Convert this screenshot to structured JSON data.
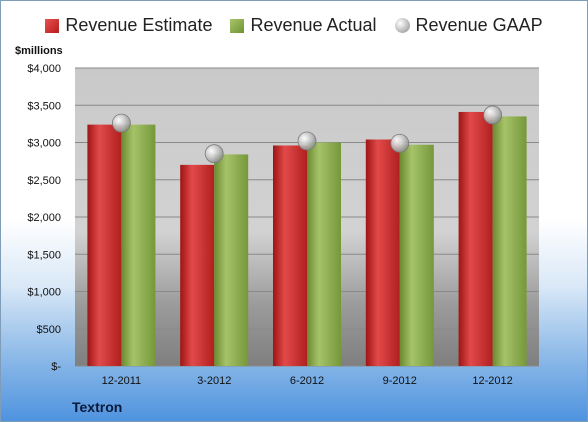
{
  "legend": {
    "estimate": "Revenue Estimate",
    "actual": "Revenue Actual",
    "gaap": "Revenue GAAP"
  },
  "unit_label": "$millions",
  "company": "Textron",
  "colors": {
    "estimate": "#c8282a",
    "actual": "#8cab4c",
    "gaap": "#b9b9b9"
  },
  "chart_data": {
    "type": "bar",
    "categories": [
      "12-2011",
      "3-2012",
      "6-2012",
      "9-2012",
      "12-2012"
    ],
    "series": [
      {
        "name": "Revenue Estimate",
        "values": [
          3240,
          2700,
          2960,
          3040,
          3410
        ]
      },
      {
        "name": "Revenue Actual",
        "values": [
          3240,
          2840,
          3000,
          2970,
          3350
        ]
      },
      {
        "name": "Revenue GAAP",
        "values": [
          3260,
          2850,
          3020,
          2990,
          3370
        ],
        "render": "marker"
      }
    ],
    "ylim": [
      0,
      4000
    ],
    "yticks": [
      0,
      500,
      1000,
      1500,
      2000,
      2500,
      3000,
      3500,
      4000
    ],
    "ytick_labels": [
      "$-",
      "$500",
      "$1,000",
      "$1,500",
      "$2,000",
      "$2,500",
      "$3,000",
      "$3,500",
      "$4,000"
    ],
    "grid": true,
    "legend": "top"
  }
}
